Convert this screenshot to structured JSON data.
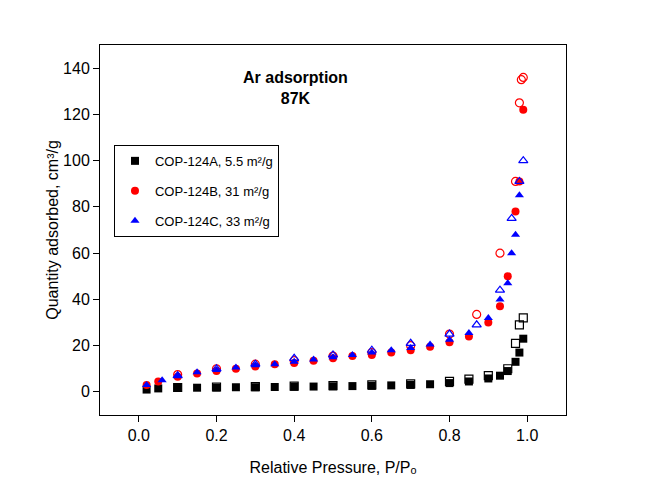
{
  "chart_data": {
    "type": "scatter",
    "annotations": [
      "Ar adsorption",
      "87K"
    ],
    "x_label": "Relative Pressure, P/Pₒ",
    "y_label": "Quantity adsorbed, cm³/g",
    "xlim": [
      -0.1,
      1.1
    ],
    "xticks": [
      {
        "value": 0,
        "label": "0.0"
      },
      {
        "value": 0.2,
        "label": "0.2"
      },
      {
        "value": 0.4,
        "label": "0.4"
      },
      {
        "value": 0.6,
        "label": "0.6"
      },
      {
        "value": 0.8,
        "label": "0.8"
      },
      {
        "value": 1,
        "label": "1.0"
      }
    ],
    "ylim": [
      -10,
      150
    ],
    "yticks": [
      0,
      20,
      40,
      60,
      80,
      100,
      120,
      140
    ],
    "grid": false,
    "legend": "upper left",
    "series": [
      {
        "name": "COP-124A, 5.5 m²/g",
        "color": "#000000",
        "marker": "square",
        "x": [
          0.02,
          0.05,
          0.1,
          0.15,
          0.2,
          0.25,
          0.3,
          0.35,
          0.4,
          0.45,
          0.5,
          0.55,
          0.6,
          0.65,
          0.7,
          0.75,
          0.8,
          0.85,
          0.9,
          0.93,
          0.95,
          0.97,
          0.98,
          0.99
        ],
        "values": [
          1,
          1.5,
          1.7,
          1.8,
          1.9,
          2,
          2,
          2.1,
          2.2,
          2.3,
          2.4,
          2.5,
          2.6,
          2.8,
          3,
          3.3,
          3.8,
          4.5,
          5.8,
          7,
          9,
          13,
          17,
          23
        ],
        "desorption": {
          "x": [
            0.99,
            0.98,
            0.97,
            0.95,
            0.9,
            0.85,
            0.8,
            0.7,
            0.6,
            0.5,
            0.4,
            0.3,
            0.2,
            0.1
          ],
          "values": [
            32,
            29,
            21,
            10,
            7,
            5.5,
            4.5,
            3.5,
            3,
            2.7,
            2.5,
            2.3,
            2.1,
            1.9
          ]
        }
      },
      {
        "name": "COP-124B, 31 m²/g",
        "color": "#ff0000",
        "marker": "circle",
        "x": [
          0.02,
          0.05,
          0.1,
          0.15,
          0.2,
          0.25,
          0.3,
          0.35,
          0.4,
          0.45,
          0.5,
          0.55,
          0.6,
          0.65,
          0.7,
          0.75,
          0.8,
          0.85,
          0.9,
          0.93,
          0.95,
          0.97,
          0.98,
          0.99
        ],
        "values": [
          3,
          4.5,
          6.5,
          8,
          9,
          10,
          11,
          12,
          12.5,
          13.5,
          14.5,
          15.5,
          16,
          17,
          18,
          19.5,
          21.5,
          24,
          30,
          37,
          50,
          78,
          91,
          122
        ],
        "desorption": {
          "x": [
            0.99,
            0.985,
            0.98,
            0.97,
            0.93,
            0.87,
            0.8,
            0.7,
            0.6,
            0.5,
            0.4,
            0.3,
            0.2,
            0.1
          ],
          "values": [
            136,
            135,
            125,
            91,
            60,
            33.5,
            25,
            20,
            17,
            15.5,
            13.5,
            12,
            10,
            7.5
          ]
        }
      },
      {
        "name": "COP-124C, 33 m²/g",
        "color": "#0000ff",
        "marker": "triangle-up",
        "x": [
          0.02,
          0.06,
          0.1,
          0.15,
          0.2,
          0.25,
          0.3,
          0.35,
          0.4,
          0.45,
          0.5,
          0.55,
          0.6,
          0.65,
          0.7,
          0.75,
          0.8,
          0.85,
          0.9,
          0.93,
          0.95,
          0.96,
          0.97,
          0.98
        ],
        "values": [
          3,
          5,
          7,
          8.5,
          9.5,
          10.5,
          11.5,
          12,
          13,
          14,
          15,
          16,
          17,
          18,
          19,
          20.5,
          22.5,
          25.5,
          32,
          40,
          47,
          60,
          68,
          85
        ],
        "desorption": {
          "x": [
            0.99,
            0.98,
            0.96,
            0.93,
            0.87,
            0.8,
            0.7,
            0.6,
            0.5,
            0.4,
            0.3,
            0.2,
            0.1
          ],
          "values": [
            100,
            91,
            75,
            44,
            29,
            25,
            21,
            18,
            16,
            14.5,
            12,
            10,
            7
          ]
        }
      }
    ]
  }
}
